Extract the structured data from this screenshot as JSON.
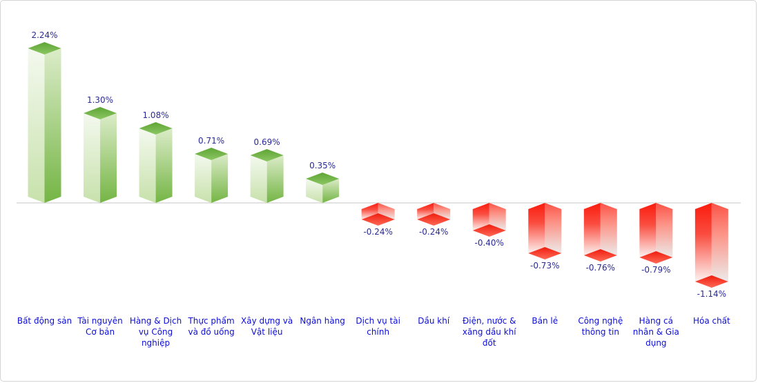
{
  "chart_data": {
    "type": "bar",
    "style": "3d-columns",
    "title": "",
    "xlabel": "",
    "ylabel": "",
    "unit": "%",
    "baseline": 0,
    "grid": false,
    "legend": false,
    "categories": [
      "Bất động sản",
      "Tài nguyên Cơ bản",
      "Hàng & Dịch vụ Công nghiệp",
      "Thực phẩm và đồ uống",
      "Xây dựng và Vật liệu",
      "Ngân hàng",
      "Dịch vụ tài chính",
      "Dầu khí",
      "Điện, nước & xăng dầu khí đốt",
      "Bán lẻ",
      "Công nghệ thông tin",
      "Hàng cá nhân & Gia dụng",
      "Hóa chất"
    ],
    "categories_lines": [
      [
        "Bất động sản"
      ],
      [
        "Tài nguyên",
        "Cơ bản"
      ],
      [
        "Hàng & Dịch",
        "vụ Công",
        "nghiệp"
      ],
      [
        "Thực phẩm",
        "và đồ uống"
      ],
      [
        "Xây dựng và",
        "Vật liệu"
      ],
      [
        "Ngân hàng"
      ],
      [
        "Dịch vụ tài",
        "chính"
      ],
      [
        "Dầu khí"
      ],
      [
        "Điện, nước &",
        "xăng dầu khí",
        "đốt"
      ],
      [
        "Bán lẻ"
      ],
      [
        "Công nghệ",
        "thông tin"
      ],
      [
        "Hàng cá",
        "nhân & Gia",
        "dụng"
      ],
      [
        "Hóa chất"
      ]
    ],
    "values": [
      2.24,
      1.3,
      1.08,
      0.71,
      0.69,
      0.35,
      -0.24,
      -0.24,
      -0.4,
      -0.73,
      -0.76,
      -0.79,
      -1.14
    ],
    "value_labels": [
      "2.24%",
      "1.30%",
      "1.08%",
      "0.71%",
      "0.69%",
      "0.35%",
      "-0.24%",
      "-0.24%",
      "-0.40%",
      "-0.73%",
      "-0.76%",
      "-0.79%",
      "-1.14%"
    ],
    "colors": {
      "positive_face": "#7ab848",
      "positive_top": "#5ea434",
      "negative_face": "#fa1b0d",
      "negative_bottom": "#f92315",
      "value_label": "#2a2a94",
      "category_label": "#0d0dd6",
      "axis_line": "#d9d9d9",
      "card_border": "#d4d4d4",
      "background": "#ffffff"
    }
  }
}
